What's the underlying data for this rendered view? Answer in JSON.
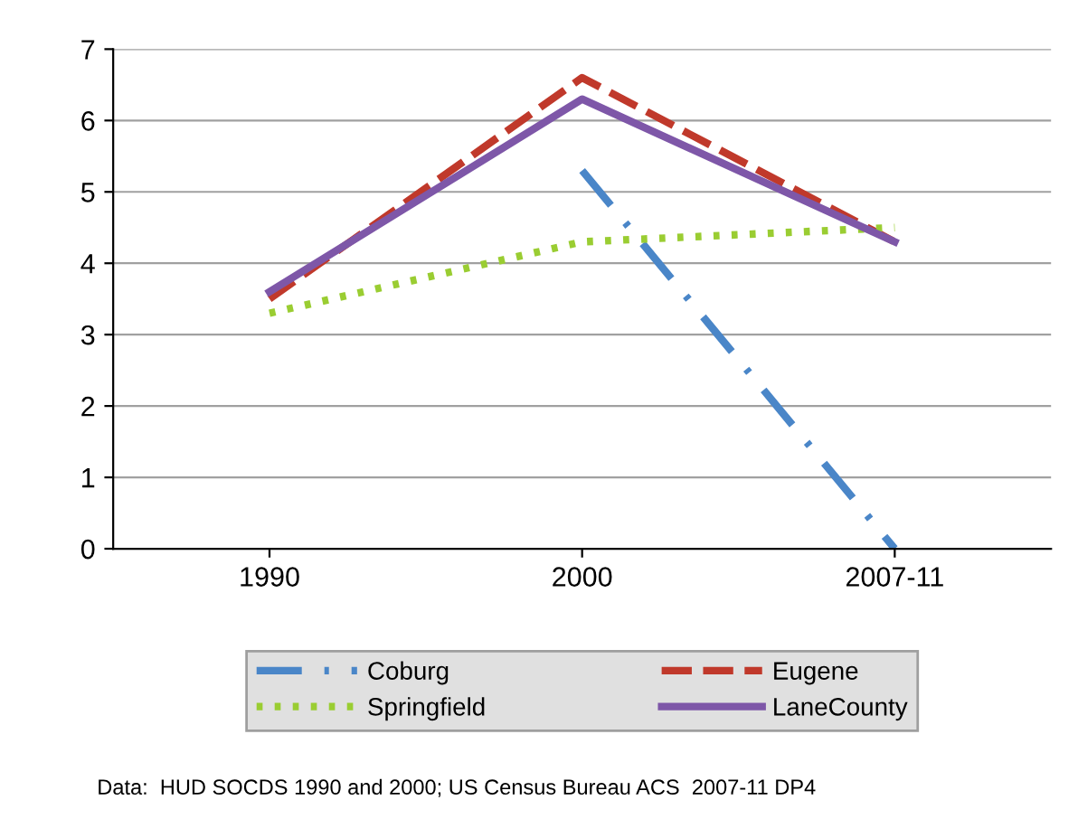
{
  "chart_data": {
    "type": "line",
    "categories": [
      "1990",
      "2000",
      "2007-11"
    ],
    "series": [
      {
        "name": "Coburg",
        "color": "#4a86c8",
        "line_style": "dashdot",
        "values": [
          null,
          5.3,
          0
        ]
      },
      {
        "name": "Eugene",
        "color": "#c0392b",
        "line_style": "dashed",
        "values": [
          3.5,
          6.6,
          4.3
        ]
      },
      {
        "name": "Springfield",
        "color": "#9acd32",
        "line_style": "dotted",
        "values": [
          3.3,
          4.3,
          4.5
        ]
      },
      {
        "name": "LaneCounty",
        "color": "#7e57a8",
        "line_style": "solid",
        "values": [
          3.6,
          6.3,
          4.3
        ]
      }
    ],
    "ylim": [
      0,
      7
    ],
    "yticks": [
      0,
      1,
      2,
      3,
      4,
      5,
      6,
      7
    ],
    "grid": "y",
    "legend": "bottom",
    "marker": "none",
    "annotations": [
      "Data:  HUD SOCDS 1990 and 2000; US Census Bureau ACS  2007-11 DP4"
    ]
  }
}
